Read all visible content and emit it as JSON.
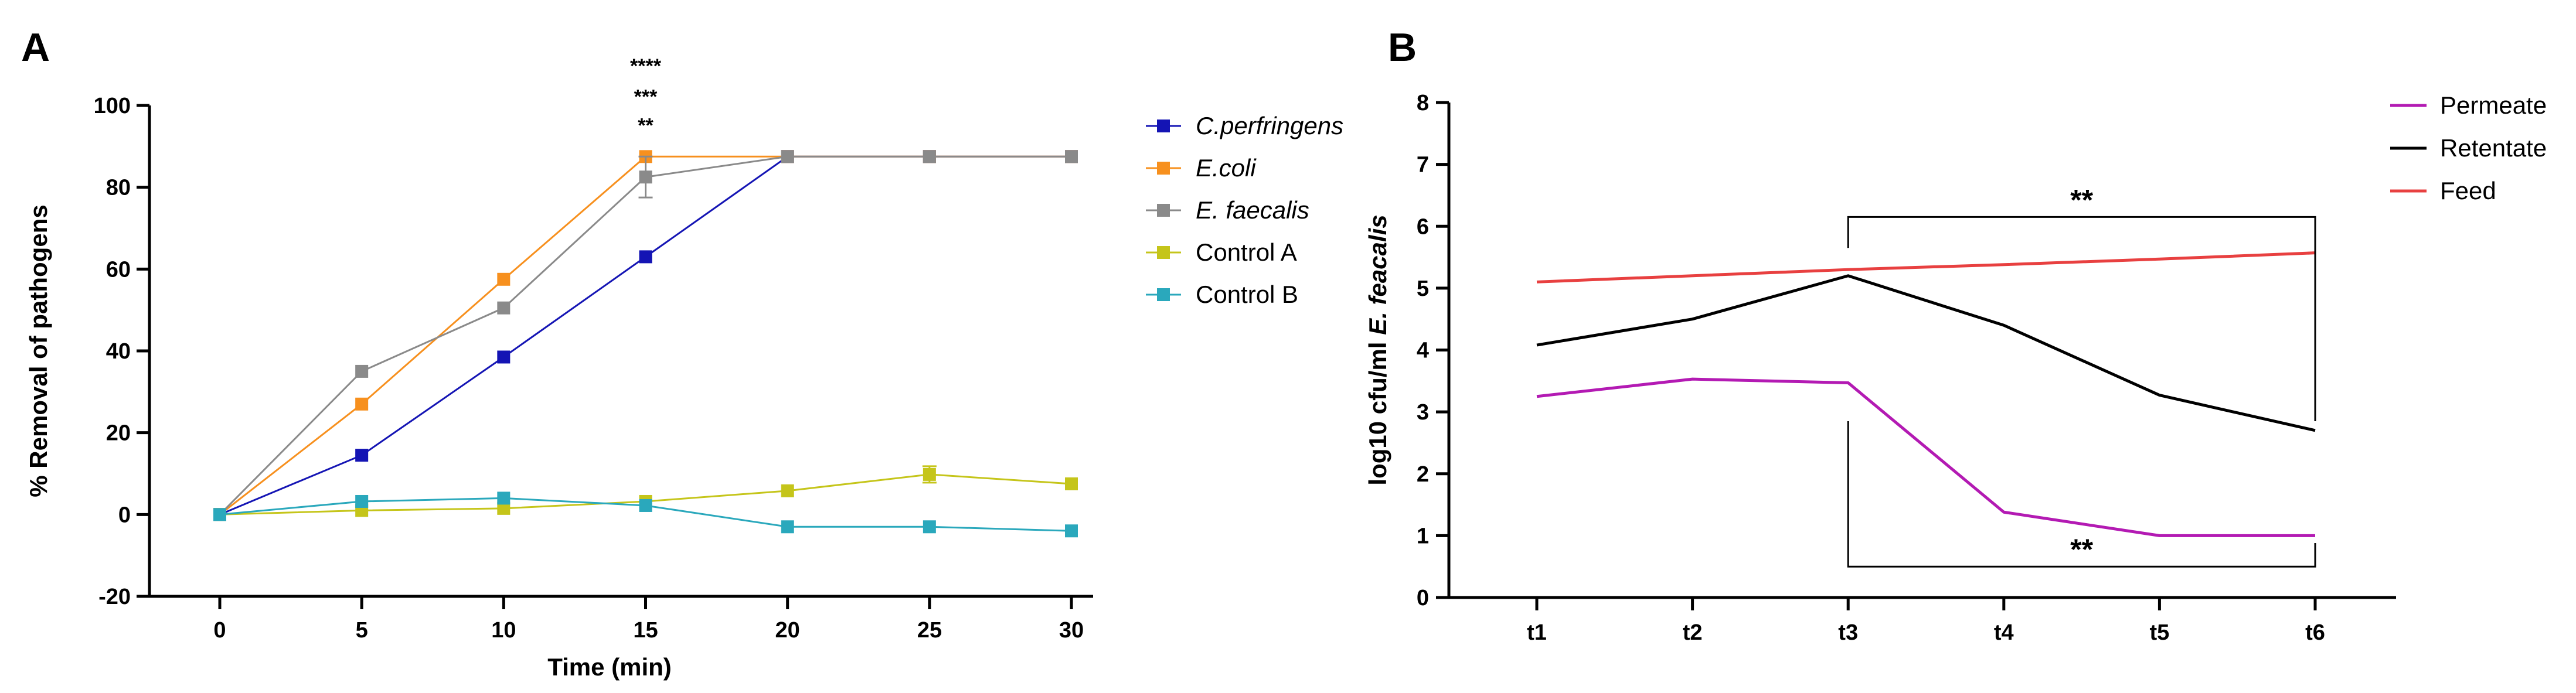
{
  "chart_data": [
    {
      "panel": "A",
      "type": "line",
      "xlabel": "Time (min)",
      "ylabel": "% Removal of pathogens",
      "x": [
        0,
        5,
        10,
        15,
        20,
        25,
        30
      ],
      "xlim": [
        -2.5,
        32
      ],
      "ylim": [
        -20,
        100
      ],
      "xticks": [
        0,
        5,
        10,
        15,
        20,
        25,
        30
      ],
      "yticks": [
        -20,
        0,
        20,
        40,
        60,
        80,
        100
      ],
      "legend_position": "right",
      "series": [
        {
          "name": "C.perfringens",
          "italic": true,
          "color": "#1414b4",
          "values": [
            0,
            14.5,
            38.5,
            63,
            87.5,
            87.5,
            87.5
          ],
          "errors": [
            0,
            0,
            0,
            0,
            0,
            0,
            0
          ]
        },
        {
          "name": "E.coli",
          "italic": true,
          "color": "#f7901e",
          "values": [
            0,
            27,
            57.5,
            87.5,
            87.5,
            87.5,
            87.5
          ],
          "errors": [
            0,
            0,
            0,
            0,
            0,
            0,
            0
          ]
        },
        {
          "name": "E. faecalis",
          "italic": true,
          "color": "#8a8a8a",
          "values": [
            0,
            35,
            50.5,
            82.5,
            87.5,
            87.5,
            87.5
          ],
          "errors": [
            0,
            0,
            0,
            5,
            0,
            0,
            0
          ]
        },
        {
          "name": "Control A",
          "italic": false,
          "color": "#c5c51a",
          "values": [
            0,
            1,
            1.5,
            3.2,
            5.8,
            9.8,
            7.5
          ],
          "errors": [
            0,
            0,
            0,
            0,
            0,
            2,
            0
          ]
        },
        {
          "name": "Control B",
          "italic": false,
          "color": "#2aa8bc",
          "values": [
            0,
            3.2,
            4,
            2.2,
            -3,
            -3,
            -4
          ],
          "errors": [
            0,
            0,
            0,
            0,
            0,
            0,
            0
          ]
        }
      ],
      "annotations": [
        {
          "x": 15,
          "y": 95.5,
          "text": "**"
        },
        {
          "x": 15,
          "y": 102.5,
          "text": "***"
        },
        {
          "x": 15,
          "y": 110,
          "text": "****"
        }
      ]
    },
    {
      "panel": "B",
      "type": "line",
      "xlabel": "",
      "ylabel_prefix": "log10 cfu/ml ",
      "ylabel_italic": "E. feacalis",
      "categories": [
        "t1",
        "t2",
        "t3",
        "t4",
        "t5",
        "t6"
      ],
      "ylim": [
        0,
        8
      ],
      "yticks": [
        0,
        1,
        2,
        3,
        4,
        5,
        6,
        7,
        8
      ],
      "legend_position": "top-right",
      "series": [
        {
          "name": "Permeate",
          "color": "#b31ab3",
          "values": [
            3.25,
            3.53,
            3.47,
            1.38,
            1.0,
            1.0
          ]
        },
        {
          "name": "Retentate",
          "color": "#000000",
          "values": [
            4.08,
            4.5,
            5.2,
            4.4,
            3.27,
            2.7
          ]
        },
        {
          "name": "Feed",
          "color": "#e84040",
          "values": [
            5.1,
            5.2,
            5.3,
            5.38,
            5.47,
            5.57
          ]
        }
      ],
      "significance": [
        {
          "from": "t3",
          "to": "t6",
          "bar_y": 6.15,
          "left_end_y": 5.65,
          "right_end_y": 2.85,
          "text": "**"
        },
        {
          "from": "t3",
          "to": "t6",
          "bar_y": 0.5,
          "left_end_y": 2.85,
          "right_end_y": 0.88,
          "text": "**"
        }
      ]
    }
  ]
}
